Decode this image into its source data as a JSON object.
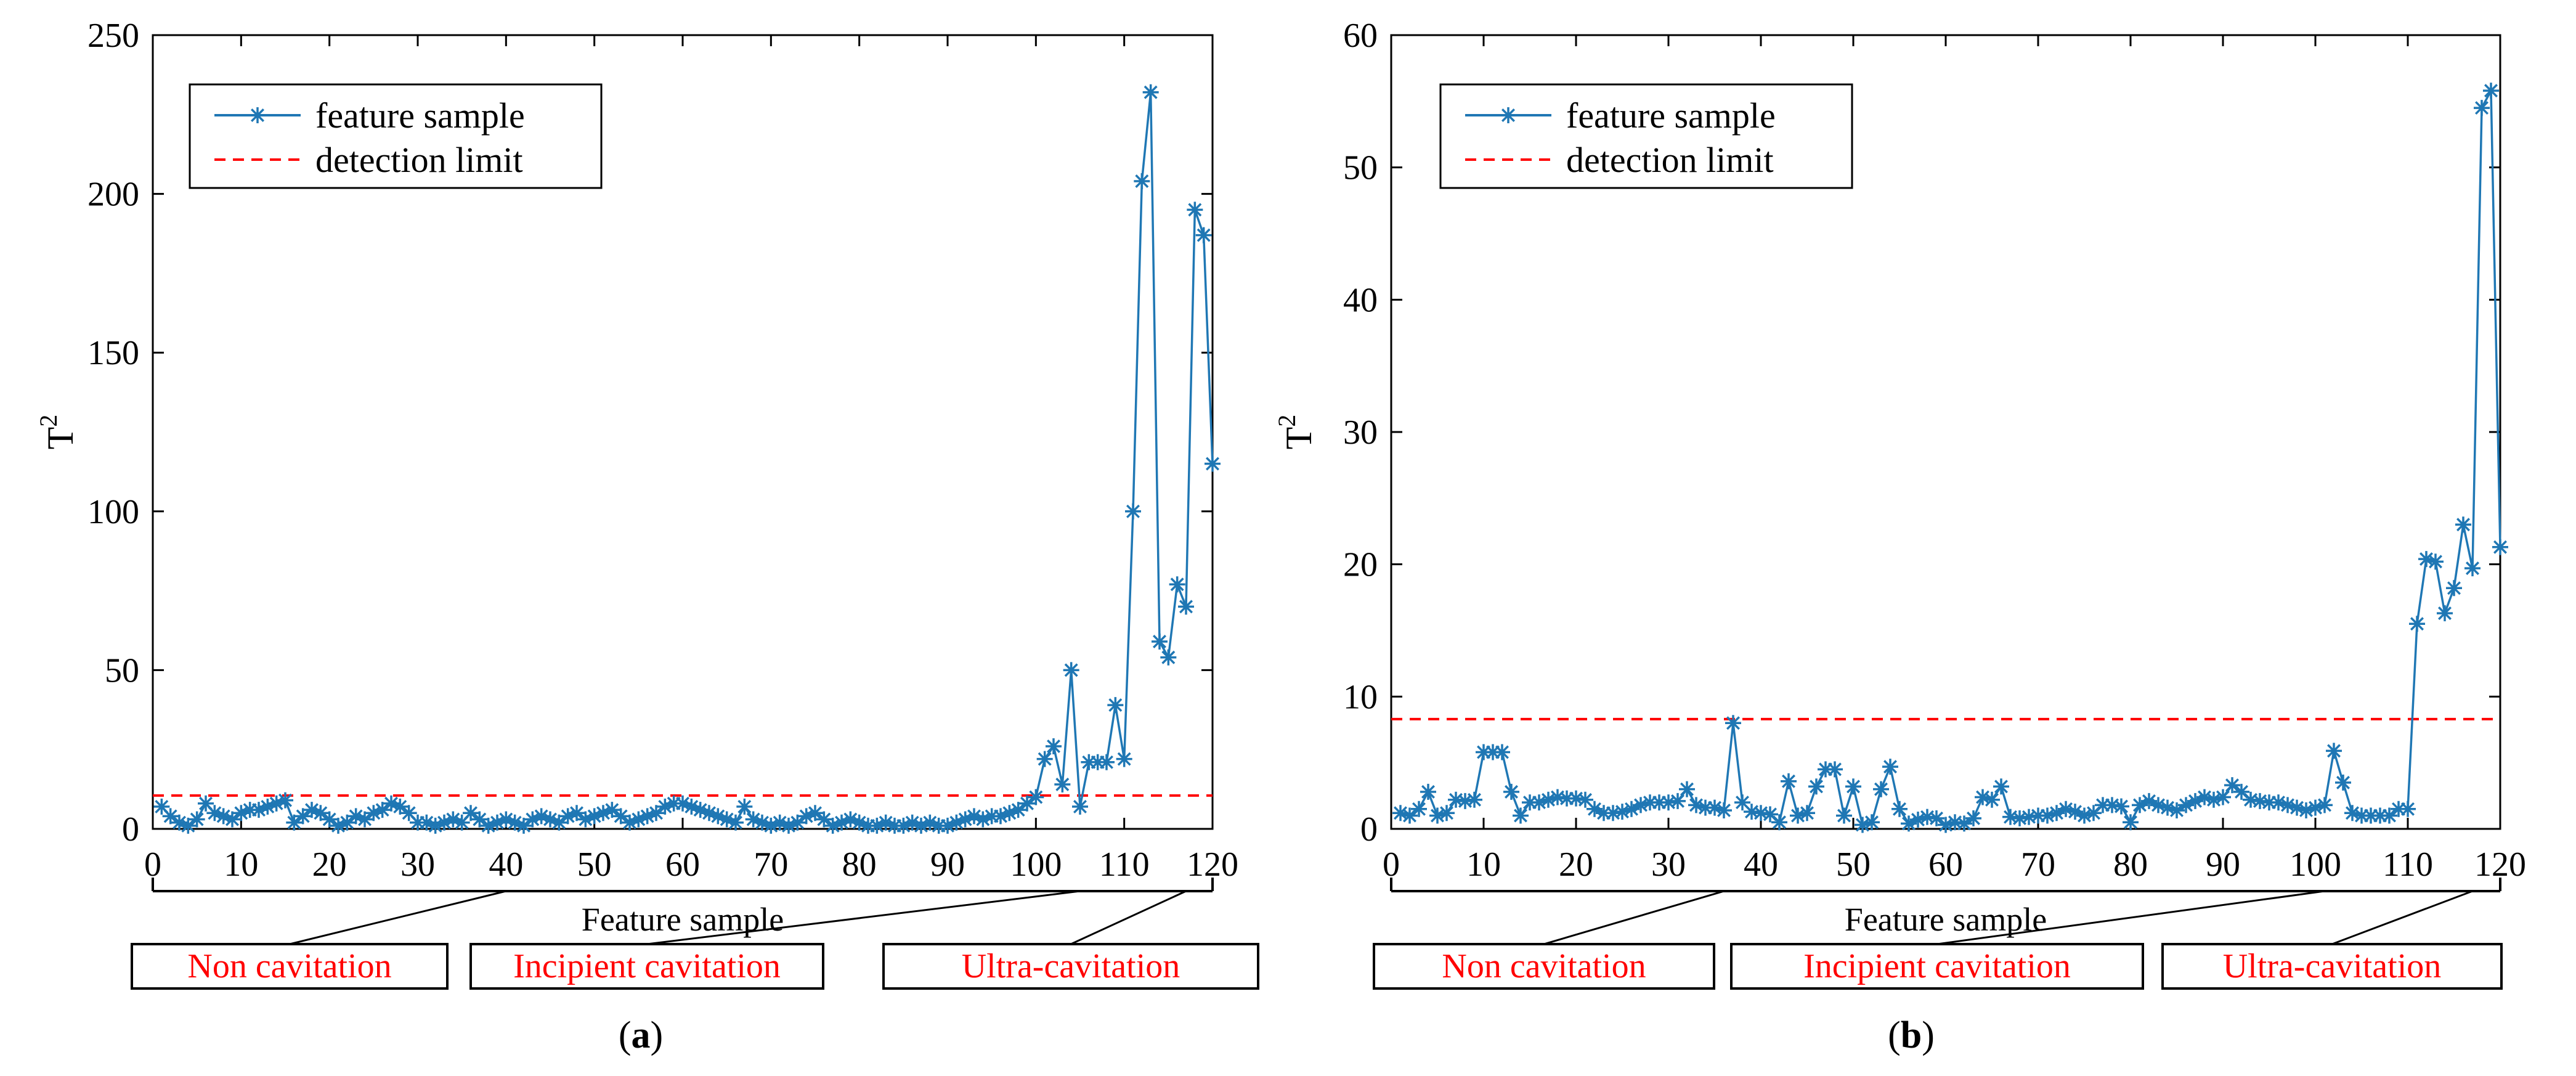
{
  "colors": {
    "series": "#1f77b4",
    "limit": "#ff0000",
    "label_text": "#ff0000",
    "axis": "#000000"
  },
  "chart_data": [
    {
      "type": "line",
      "panel_label": "(a)",
      "xlabel": "Feature sample",
      "ylabel": "T",
      "ylabel_sup": "2",
      "xlim": [
        0,
        120
      ],
      "ylim": [
        0,
        250
      ],
      "xticks": [
        0,
        10,
        20,
        30,
        40,
        50,
        60,
        70,
        80,
        90,
        100,
        110,
        120
      ],
      "yticks": [
        0,
        50,
        100,
        150,
        200,
        250
      ],
      "legend_position": "top-left",
      "series": [
        {
          "name": "feature sample",
          "marker": "asterisk",
          "x": [
            1,
            2,
            3,
            4,
            5,
            6,
            7,
            8,
            9,
            10,
            11,
            12,
            13,
            14,
            15,
            16,
            17,
            18,
            19,
            20,
            21,
            22,
            23,
            24,
            25,
            26,
            27,
            28,
            29,
            30,
            31,
            32,
            33,
            34,
            35,
            36,
            37,
            38,
            39,
            40,
            41,
            42,
            43,
            44,
            45,
            46,
            47,
            48,
            49,
            50,
            51,
            52,
            53,
            54,
            55,
            56,
            57,
            58,
            59,
            60,
            61,
            62,
            63,
            64,
            65,
            66,
            67,
            68,
            69,
            70,
            71,
            72,
            73,
            74,
            75,
            76,
            77,
            78,
            79,
            80,
            81,
            82,
            83,
            84,
            85,
            86,
            87,
            88,
            89,
            90,
            91,
            92,
            93,
            94,
            95,
            96,
            97,
            98,
            99,
            100,
            101,
            102,
            103,
            104,
            105,
            106,
            107,
            108,
            109,
            110,
            111,
            112,
            113,
            114,
            115,
            116,
            117,
            118,
            119,
            120
          ],
          "y": [
            7,
            4,
            2,
            1,
            3,
            8,
            5,
            4,
            3,
            5,
            6,
            6,
            7,
            8,
            9,
            2,
            4,
            6,
            5,
            3,
            1,
            2,
            4,
            3,
            5,
            6,
            8,
            7,
            5,
            2,
            2,
            1,
            2,
            3,
            2,
            5,
            3,
            1,
            2,
            3,
            2,
            1,
            3,
            4,
            3,
            2,
            4,
            5,
            3,
            4,
            5,
            6,
            4,
            2,
            3,
            4,
            5,
            7,
            8,
            8,
            7,
            6,
            5,
            4,
            3,
            2,
            7,
            3,
            2,
            1,
            2,
            1,
            2,
            4,
            5,
            3,
            1,
            2,
            3,
            2,
            1,
            1,
            2,
            1,
            1,
            2,
            1,
            2,
            1,
            1,
            2,
            3,
            4,
            3,
            4,
            4,
            5,
            6,
            8,
            10,
            22,
            26,
            14,
            50,
            7,
            21,
            21,
            21,
            39,
            22,
            100,
            204,
            232,
            59,
            54,
            77,
            70,
            195,
            187,
            115
          ]
        },
        {
          "name": "detection limit",
          "style": "dashed",
          "value": 10.5
        }
      ],
      "condition_labels": [
        "Non cavitation",
        "Incipient cavitation",
        "Ultra-cavitation"
      ],
      "condition_ranges": [
        [
          0,
          40
        ],
        [
          40,
          105
        ],
        [
          105,
          117
        ]
      ]
    },
    {
      "type": "line",
      "panel_label": "(b)",
      "xlabel": "Feature sample",
      "ylabel": "T",
      "ylabel_sup": "2",
      "xlim": [
        0,
        120
      ],
      "ylim": [
        0,
        60
      ],
      "xticks": [
        0,
        10,
        20,
        30,
        40,
        50,
        60,
        70,
        80,
        90,
        100,
        110,
        120
      ],
      "yticks": [
        0,
        10,
        20,
        30,
        40,
        50,
        60
      ],
      "legend_position": "top-left",
      "series": [
        {
          "name": "feature sample",
          "marker": "asterisk",
          "x": [
            1,
            2,
            3,
            4,
            5,
            6,
            7,
            8,
            9,
            10,
            11,
            12,
            13,
            14,
            15,
            16,
            17,
            18,
            19,
            20,
            21,
            22,
            23,
            24,
            25,
            26,
            27,
            28,
            29,
            30,
            31,
            32,
            33,
            34,
            35,
            36,
            37,
            38,
            39,
            40,
            41,
            42,
            43,
            44,
            45,
            46,
            47,
            48,
            49,
            50,
            51,
            52,
            53,
            54,
            55,
            56,
            57,
            58,
            59,
            60,
            61,
            62,
            63,
            64,
            65,
            66,
            67,
            68,
            69,
            70,
            71,
            72,
            73,
            74,
            75,
            76,
            77,
            78,
            79,
            80,
            81,
            82,
            83,
            84,
            85,
            86,
            87,
            88,
            89,
            90,
            91,
            92,
            93,
            94,
            95,
            96,
            97,
            98,
            99,
            100,
            101,
            102,
            103,
            104,
            105,
            106,
            107,
            108,
            109,
            110,
            111,
            112,
            113,
            114,
            115,
            116,
            117,
            118,
            119,
            120
          ],
          "y": [
            1.2,
            1.0,
            1.5,
            2.8,
            1.0,
            1.2,
            2.2,
            2.1,
            2.2,
            5.8,
            5.8,
            5.8,
            2.8,
            1.0,
            2.0,
            2.0,
            2.2,
            2.4,
            2.3,
            2.3,
            2.2,
            1.5,
            1.2,
            1.2,
            1.3,
            1.5,
            1.8,
            2.0,
            2.0,
            2.0,
            2.1,
            3.0,
            1.8,
            1.6,
            1.6,
            1.4,
            8.0,
            2.0,
            1.3,
            1.2,
            1.1,
            0.5,
            3.6,
            1.0,
            1.2,
            3.2,
            4.5,
            4.5,
            1.0,
            3.2,
            0.3,
            0.5,
            3.0,
            4.7,
            1.5,
            0.4,
            0.7,
            0.9,
            0.8,
            0.3,
            0.5,
            0.4,
            0.8,
            2.4,
            2.2,
            3.2,
            0.9,
            0.8,
            0.9,
            1.0,
            1.0,
            1.2,
            1.5,
            1.3,
            1.0,
            1.2,
            1.8,
            1.8,
            1.7,
            0.5,
            1.8,
            2.1,
            1.8,
            1.6,
            1.4,
            1.8,
            2.1,
            2.4,
            2.2,
            2.4,
            3.3,
            2.8,
            2.2,
            2.1,
            2.0,
            2.0,
            1.8,
            1.6,
            1.4,
            1.6,
            1.8,
            5.9,
            3.5,
            1.2,
            1.0,
            1.0,
            1.0,
            1.0,
            1.5,
            1.5,
            15.5,
            20.4,
            20.2,
            16.3,
            18.2,
            23.0,
            19.7,
            54.5,
            55.8,
            21.3
          ]
        },
        {
          "name": "detection limit",
          "style": "dashed",
          "value": 8.3
        }
      ],
      "condition_labels": [
        "Non cavitation",
        "Incipient cavitation",
        "Ultra-cavitation"
      ],
      "condition_ranges": [
        [
          0,
          36
        ],
        [
          36,
          101
        ],
        [
          101,
          117
        ]
      ]
    }
  ]
}
